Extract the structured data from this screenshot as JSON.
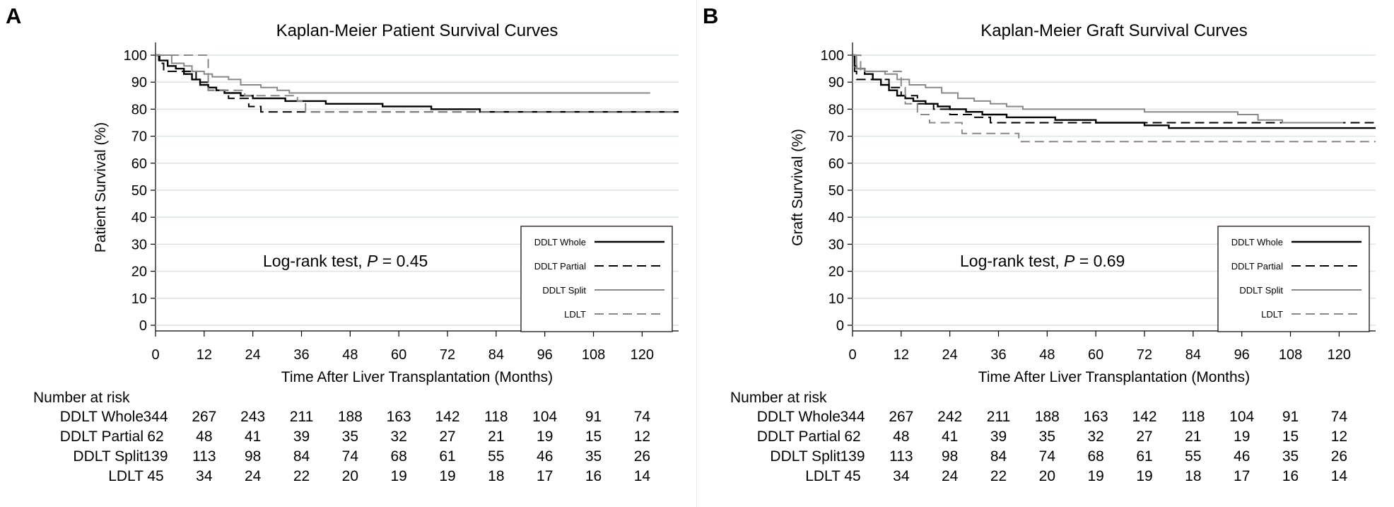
{
  "colors": {
    "background": "#ffffff",
    "grid": "#d5e6e6",
    "whole": "#000000",
    "partial": "#000000",
    "split": "#888888",
    "ldlt": "#888888"
  },
  "panels": [
    {
      "letter": "A",
      "chart_data": {
        "type": "line",
        "title": "Kaplan-Meier Patient Survival Curves",
        "xlabel": "Time After Liver Transplantation (Months)",
        "ylabel": "Patient Survival (%)",
        "xlim": [
          0,
          129
        ],
        "ylim": [
          0,
          100
        ],
        "xticks": [
          0,
          12,
          24,
          36,
          48,
          60,
          72,
          84,
          96,
          108,
          120
        ],
        "yticks": [
          0,
          10,
          20,
          30,
          40,
          50,
          60,
          70,
          80,
          90,
          100
        ],
        "grid": true,
        "legend_position": "bottom-right",
        "annotation": {
          "prefix": "Log-rank test, ",
          "p_label": "P",
          "value_text": " = 0.45"
        },
        "series": [
          {
            "name": "DDLT Whole",
            "style": "solid",
            "color": "#000000",
            "width": 2.4,
            "points": [
              [
                0,
                100
              ],
              [
                1,
                98
              ],
              [
                3,
                96
              ],
              [
                5,
                95
              ],
              [
                7,
                93
              ],
              [
                9,
                91
              ],
              [
                11,
                89
              ],
              [
                13,
                88
              ],
              [
                15,
                87
              ],
              [
                17,
                86
              ],
              [
                19,
                86
              ],
              [
                21,
                85
              ],
              [
                24,
                84
              ],
              [
                28,
                84
              ],
              [
                32,
                83
              ],
              [
                36,
                83
              ],
              [
                42,
                82
              ],
              [
                50,
                82
              ],
              [
                56,
                81
              ],
              [
                60,
                81
              ],
              [
                68,
                80
              ],
              [
                76,
                80
              ],
              [
                80,
                79
              ],
              [
                90,
                79
              ],
              [
                100,
                79
              ],
              [
                110,
                79
              ],
              [
                120,
                79
              ],
              [
                129,
                79
              ]
            ]
          },
          {
            "name": "DDLT Partial",
            "style": "dashed",
            "color": "#000000",
            "width": 2.0,
            "points": [
              [
                0,
                100
              ],
              [
                0.8,
                97
              ],
              [
                2,
                94
              ],
              [
                6,
                94
              ],
              [
                10,
                90
              ],
              [
                13,
                87
              ],
              [
                18,
                84
              ],
              [
                23,
                81
              ],
              [
                26,
                79
              ],
              [
                30,
                79
              ],
              [
                40,
                79
              ],
              [
                60,
                79
              ],
              [
                80,
                79
              ],
              [
                100,
                79
              ],
              [
                120,
                79
              ],
              [
                129,
                79
              ]
            ]
          },
          {
            "name": "DDLT Split",
            "style": "solid",
            "color": "#888888",
            "width": 2.0,
            "points": [
              [
                0,
                100
              ],
              [
                4,
                97
              ],
              [
                7,
                96
              ],
              [
                9,
                94
              ],
              [
                12,
                93
              ],
              [
                14,
                92
              ],
              [
                18,
                91
              ],
              [
                21,
                89
              ],
              [
                26,
                88
              ],
              [
                30,
                87
              ],
              [
                33,
                86
              ],
              [
                40,
                86
              ],
              [
                60,
                86
              ],
              [
                80,
                86
              ],
              [
                100,
                86
              ],
              [
                122,
                86
              ]
            ]
          },
          {
            "name": "LDLT",
            "style": "dashed",
            "color": "#888888",
            "width": 2.0,
            "points": [
              [
                0,
                100
              ],
              [
                12,
                100
              ],
              [
                13,
                87
              ],
              [
                20,
                87
              ],
              [
                22,
                85
              ],
              [
                30,
                85
              ],
              [
                35,
                83
              ],
              [
                37,
                79
              ],
              [
                50,
                79
              ],
              [
                70,
                79
              ],
              [
                90,
                79
              ],
              [
                110,
                79
              ],
              [
                129,
                79
              ]
            ]
          }
        ]
      },
      "risk_table": {
        "header": "Number at risk",
        "rows": [
          {
            "name": "DDLT Whole",
            "values": [
              "344",
              "267",
              "243",
              "211",
              "188",
              "163",
              "142",
              "118",
              "104",
              "91",
              "74"
            ]
          },
          {
            "name": "DDLT Partial",
            "values": [
              "62",
              "48",
              "41",
              "39",
              "35",
              "32",
              "27",
              "21",
              "19",
              "15",
              "12"
            ]
          },
          {
            "name": "DDLT Split",
            "values": [
              "139",
              "113",
              "98",
              "84",
              "74",
              "68",
              "61",
              "55",
              "46",
              "35",
              "26"
            ]
          },
          {
            "name": "LDLT",
            "values": [
              "45",
              "34",
              "24",
              "22",
              "20",
              "19",
              "19",
              "18",
              "17",
              "16",
              "14"
            ]
          }
        ]
      }
    },
    {
      "letter": "B",
      "chart_data": {
        "type": "line",
        "title": "Kaplan-Meier Graft Survival Curves",
        "xlabel": "Time After Liver Transplantation (Months)",
        "ylabel": "Graft Survival (%)",
        "xlim": [
          0,
          129
        ],
        "ylim": [
          0,
          100
        ],
        "xticks": [
          0,
          12,
          24,
          36,
          48,
          60,
          72,
          84,
          96,
          108,
          120
        ],
        "yticks": [
          0,
          10,
          20,
          30,
          40,
          50,
          60,
          70,
          80,
          90,
          100
        ],
        "grid": true,
        "legend_position": "bottom-right",
        "annotation": {
          "prefix": "Log-rank test, ",
          "p_label": "P",
          "value_text": " = 0.69"
        },
        "series": [
          {
            "name": "DDLT Whole",
            "style": "solid",
            "color": "#000000",
            "width": 2.4,
            "points": [
              [
                0,
                100
              ],
              [
                0.5,
                96
              ],
              [
                1,
                95
              ],
              [
                3,
                93
              ],
              [
                5,
                91
              ],
              [
                7,
                89
              ],
              [
                9,
                87
              ],
              [
                11,
                85
              ],
              [
                13,
                84
              ],
              [
                15,
                83
              ],
              [
                18,
                82
              ],
              [
                21,
                81
              ],
              [
                24,
                80
              ],
              [
                28,
                79
              ],
              [
                32,
                78
              ],
              [
                38,
                77
              ],
              [
                44,
                77
              ],
              [
                50,
                76
              ],
              [
                56,
                76
              ],
              [
                60,
                75
              ],
              [
                66,
                75
              ],
              [
                72,
                74
              ],
              [
                78,
                73
              ],
              [
                90,
                73
              ],
              [
                100,
                73
              ],
              [
                110,
                73
              ],
              [
                120,
                73
              ],
              [
                129,
                73
              ]
            ]
          },
          {
            "name": "DDLT Partial",
            "style": "dashed",
            "color": "#000000",
            "width": 2.0,
            "points": [
              [
                0,
                100
              ],
              [
                0.5,
                94
              ],
              [
                1,
                91
              ],
              [
                6,
                91
              ],
              [
                9,
                88
              ],
              [
                12,
                85
              ],
              [
                16,
                82
              ],
              [
                20,
                80
              ],
              [
                24,
                78
              ],
              [
                30,
                77
              ],
              [
                34,
                75
              ],
              [
                40,
                75
              ],
              [
                60,
                75
              ],
              [
                80,
                75
              ],
              [
                100,
                75
              ],
              [
                129,
                75
              ]
            ]
          },
          {
            "name": "DDLT Split",
            "style": "solid",
            "color": "#888888",
            "width": 2.0,
            "points": [
              [
                0,
                100
              ],
              [
                1,
                95
              ],
              [
                3,
                94
              ],
              [
                8,
                93
              ],
              [
                11,
                91
              ],
              [
                14,
                89
              ],
              [
                18,
                88
              ],
              [
                22,
                86
              ],
              [
                26,
                84
              ],
              [
                30,
                83
              ],
              [
                34,
                82
              ],
              [
                38,
                81
              ],
              [
                42,
                80
              ],
              [
                50,
                80
              ],
              [
                60,
                80
              ],
              [
                72,
                79
              ],
              [
                84,
                79
              ],
              [
                95,
                78
              ],
              [
                100,
                76
              ],
              [
                106,
                75
              ],
              [
                121,
                75
              ]
            ]
          },
          {
            "name": "LDLT",
            "style": "dashed",
            "color": "#888888",
            "width": 2.0,
            "points": [
              [
                0,
                100
              ],
              [
                2,
                94
              ],
              [
                10,
                94
              ],
              [
                12,
                88
              ],
              [
                13,
                82
              ],
              [
                16,
                78
              ],
              [
                19,
                75
              ],
              [
                26,
                75
              ],
              [
                27,
                71
              ],
              [
                36,
                71
              ],
              [
                41,
                68
              ],
              [
                60,
                68
              ],
              [
                80,
                68
              ],
              [
                100,
                68
              ],
              [
                120,
                68
              ],
              [
                129,
                68
              ]
            ]
          }
        ]
      },
      "risk_table": {
        "header": "Number at risk",
        "rows": [
          {
            "name": "DDLT Whole",
            "values": [
              "344",
              "267",
              "242",
              "211",
              "188",
              "163",
              "142",
              "118",
              "104",
              "91",
              "74"
            ]
          },
          {
            "name": "DDLT Partial",
            "values": [
              "62",
              "48",
              "41",
              "39",
              "35",
              "32",
              "27",
              "21",
              "19",
              "15",
              "12"
            ]
          },
          {
            "name": "DDLT Split",
            "values": [
              "139",
              "113",
              "98",
              "84",
              "74",
              "68",
              "61",
              "55",
              "46",
              "35",
              "26"
            ]
          },
          {
            "name": "LDLT",
            "values": [
              "45",
              "34",
              "24",
              "22",
              "20",
              "19",
              "19",
              "18",
              "17",
              "16",
              "14"
            ]
          }
        ]
      }
    }
  ]
}
